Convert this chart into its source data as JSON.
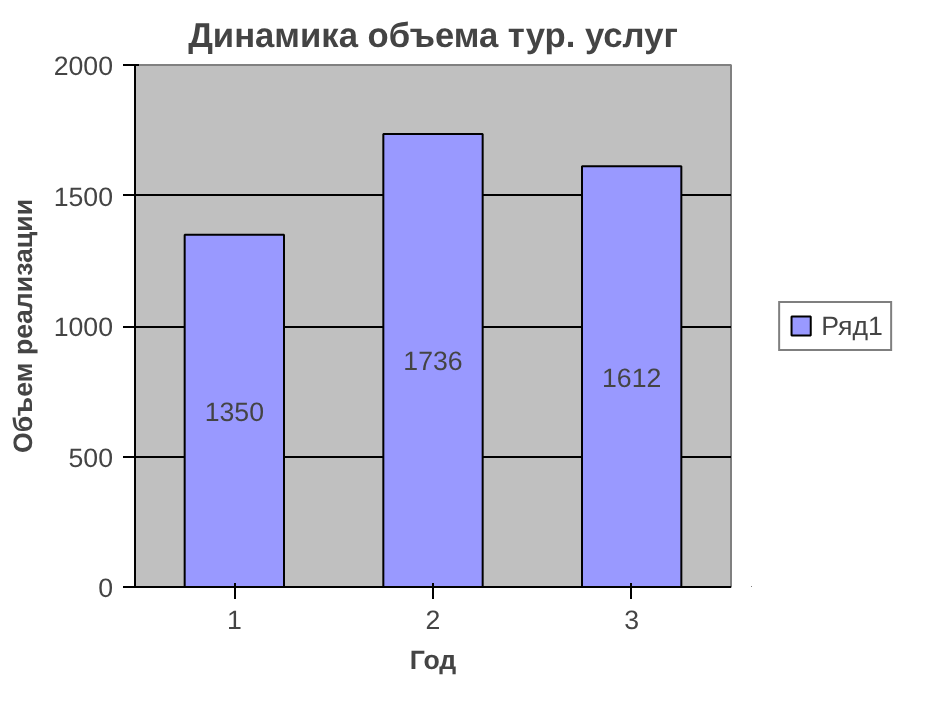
{
  "chart_data": {
    "type": "bar",
    "title": "Динамика объема тур. услуг",
    "xlabel": "Год",
    "ylabel": "Объем реализации",
    "categories": [
      "1",
      "2",
      "3"
    ],
    "series": [
      {
        "name": "Ряд1",
        "color": "#9999ff",
        "values": [
          1350,
          1736,
          1612
        ]
      }
    ],
    "ylim": [
      0,
      2000
    ],
    "yticks": [
      0,
      500,
      1000,
      1500,
      2000
    ],
    "grid": "y",
    "legend": "right",
    "data_labels": true
  }
}
